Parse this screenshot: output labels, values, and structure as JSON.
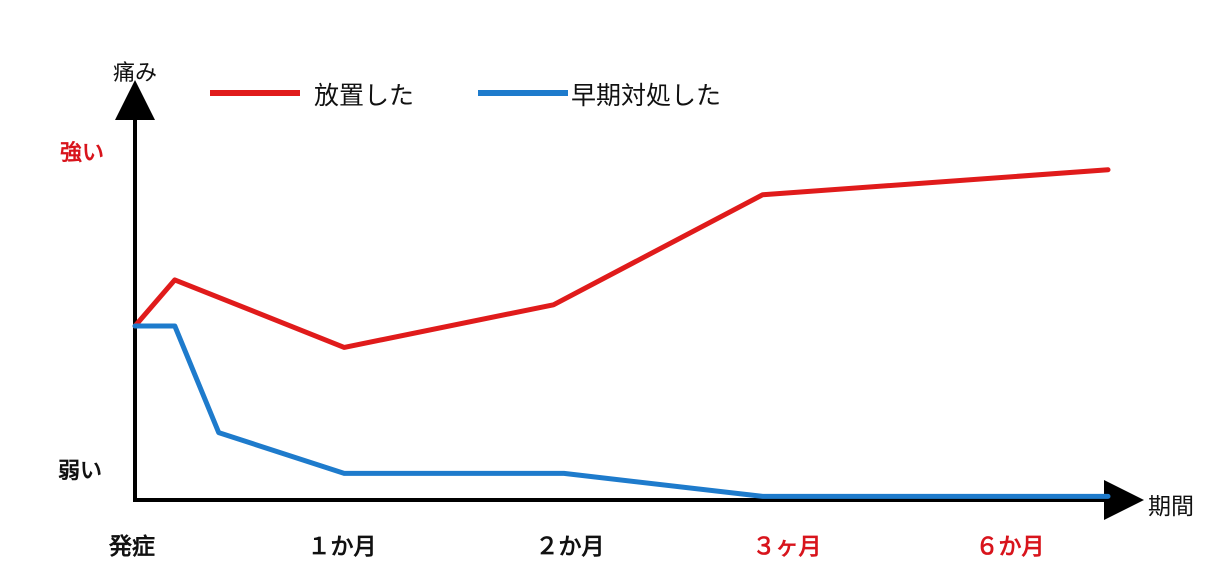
{
  "chart_data": {
    "type": "line",
    "xlabel": "期間",
    "ylabel": "痛み",
    "y_tick_high": "強い",
    "y_tick_low": "弱い",
    "x_ticks": [
      {
        "label": "発症",
        "x": 0,
        "color": "#111111"
      },
      {
        "label": "１か月",
        "x": 1,
        "color": "#111111"
      },
      {
        "label": "２か月",
        "x": 2,
        "color": "#111111"
      },
      {
        "label": "３ヶ月",
        "x": 3,
        "color": "#d8141c"
      },
      {
        "label": "６か月",
        "x": 4.5,
        "color": "#d8141c"
      }
    ],
    "xlim": [
      0,
      4.65
    ],
    "ylim": [
      0,
      10
    ],
    "grid": false,
    "legend_position": "top",
    "series": [
      {
        "name": "放置した",
        "color": "#e01b1b",
        "points": [
          [
            0,
            4.9
          ],
          [
            0.19,
            6.2
          ],
          [
            1,
            4.3
          ],
          [
            2,
            5.5
          ],
          [
            3,
            8.6
          ],
          [
            4.65,
            9.3
          ]
        ]
      },
      {
        "name": "早期対処した",
        "color": "#1e7bcc",
        "points": [
          [
            0,
            4.9
          ],
          [
            0.19,
            4.9
          ],
          [
            0.4,
            1.9
          ],
          [
            1,
            0.75
          ],
          [
            2.05,
            0.75
          ],
          [
            3,
            0.1
          ],
          [
            4.65,
            0.1
          ]
        ]
      }
    ],
    "high_label_color": "#d8141c",
    "low_label_color": "#111111"
  }
}
